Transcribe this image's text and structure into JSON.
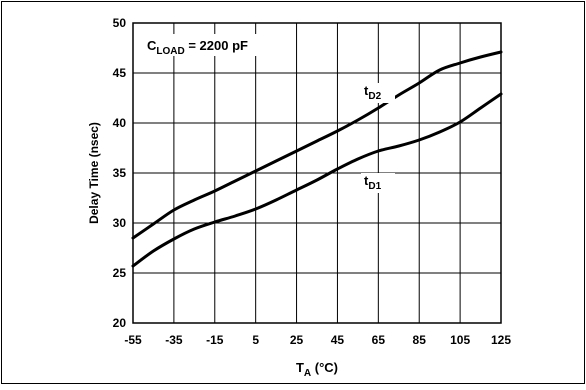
{
  "chart_data": {
    "type": "line",
    "xlabel": "T",
    "xlabel_sub": "A",
    "xlabel_unit": " (°C)",
    "ylabel": "Delay Time (nsec)",
    "annotation": {
      "base": "C",
      "sub": "LOAD",
      "rest": " = 2200 pF"
    },
    "xlim": [
      -55,
      125
    ],
    "ylim": [
      20,
      50
    ],
    "x_ticks": [
      -55,
      -35,
      -15,
      5,
      25,
      45,
      65,
      85,
      105,
      125
    ],
    "y_ticks": [
      20,
      25,
      30,
      35,
      40,
      45,
      50
    ],
    "grid": true,
    "series": [
      {
        "name_base": "t",
        "name_sub": "D2",
        "x": [
          -55,
          -45,
          -35,
          -25,
          -15,
          -5,
          5,
          15,
          25,
          35,
          45,
          55,
          65,
          75,
          85,
          95,
          105,
          115,
          125
        ],
        "values": [
          28.5,
          29.9,
          31.3,
          32.3,
          33.2,
          34.2,
          35.2,
          36.2,
          37.2,
          38.2,
          39.2,
          40.3,
          41.5,
          42.8,
          44.0,
          45.3,
          46.0,
          46.6,
          47.1
        ]
      },
      {
        "name_base": "t",
        "name_sub": "D1",
        "x": [
          -55,
          -45,
          -35,
          -25,
          -15,
          -5,
          5,
          15,
          25,
          35,
          45,
          55,
          65,
          75,
          85,
          95,
          105,
          115,
          125
        ],
        "values": [
          25.7,
          27.2,
          28.4,
          29.4,
          30.1,
          30.7,
          31.4,
          32.3,
          33.3,
          34.3,
          35.4,
          36.4,
          37.2,
          37.7,
          38.3,
          39.1,
          40.1,
          41.5,
          42.9
        ]
      }
    ]
  }
}
